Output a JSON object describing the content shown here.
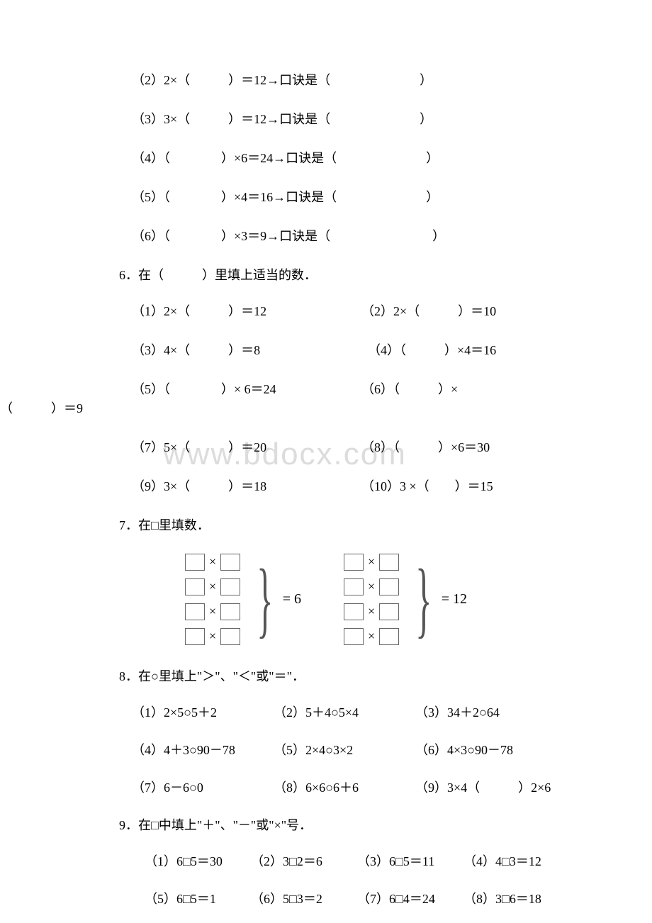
{
  "watermark": "www.bdocx.com",
  "q5": {
    "items": [
      "（2）2×（　　　）＝12→口诀是（　　　　　　　）",
      "（3）3×（　　　）＝12→口诀是（　　　　　　　）",
      "（4）（　　　　）×6＝24→口诀是（　　　　　　　）",
      "（5）（　　　　）×4＝16→口诀是（　　　　　　　）",
      "（6）（　　　　）×3＝9→口诀是（　　　　　　　　）"
    ]
  },
  "q6": {
    "heading": "6．在（　　　）里填上适当的数．",
    "rows": [
      {
        "left": "（1）2×（　　　）＝12",
        "right": "（2）2×（　　　）＝10"
      },
      {
        "left": "（3）4×（　　　）＝8",
        "right": "　（4）（　　　）×4＝16"
      },
      {
        "left": "（5）（　　　　）× 6＝24",
        "right": "（6）（　　　）×"
      },
      {
        "left": "（7）5×（　　　）＝20",
        "right": "（8）（　　　）×6＝30"
      },
      {
        "left": "（9）3×（　　　）＝18",
        "right": "（10）3 ×（　　）＝15"
      }
    ],
    "wrap": "（　　　）＝9"
  },
  "q7": {
    "heading": "7．在□里填数．",
    "result1": "= 6",
    "result2": "= 12"
  },
  "q8": {
    "heading": "8．在○里填上\"＞\"、\"＜\"或\"＝\"．",
    "rows": [
      [
        "（1）2×5○5＋2",
        "（2）5＋4○5×4",
        "（3）34＋2○64"
      ],
      [
        "（4）4＋3○90－78",
        "（5）2×4○3×2",
        "（6）4×3○90－78"
      ],
      [
        "（7）6－6○0",
        "（8）6×6○6＋6",
        "（9）3×4（　　　）2×6"
      ]
    ]
  },
  "q9": {
    "heading": "9．在□中填上\"＋\"、\"－\"或\"×\"号．",
    "rows": [
      [
        "（1）6□5＝30",
        "（2）3□2＝6",
        "（3）6□5＝11",
        "（4）4□3＝12"
      ],
      [
        "（5）6□5＝1",
        "（6）5□3＝2",
        "（7）6□4＝24",
        "（8）3□6＝18"
      ]
    ]
  }
}
